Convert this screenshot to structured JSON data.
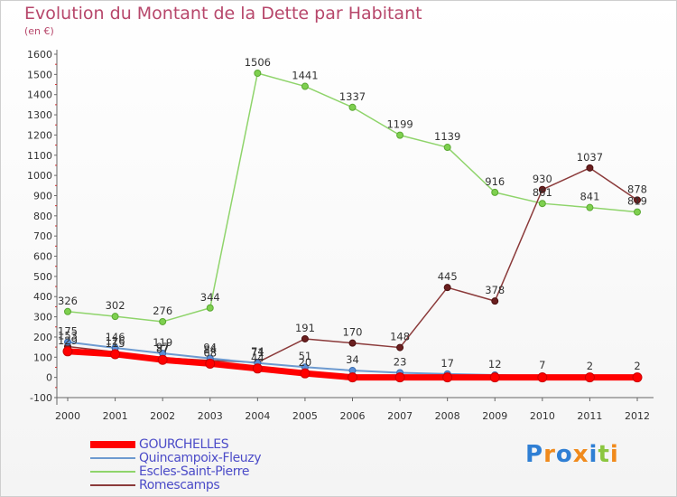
{
  "title": "Evolution du Montant de la Dette par Habitant",
  "subtitle": "(en €)",
  "logo": {
    "text": "Proxiti",
    "letter_colors": [
      "#2f7fd4",
      "#f08a1c",
      "#2f7fd4",
      "#f08a1c",
      "#2f7fd4",
      "#8bc63f",
      "#f08a1c"
    ]
  },
  "chart_data": {
    "type": "line",
    "x": [
      "2000",
      "2001",
      "2002",
      "2003",
      "2004",
      "2005",
      "2006",
      "2007",
      "2008",
      "2009",
      "2010",
      "2011",
      "2012"
    ],
    "ylim": [
      -100,
      1600
    ],
    "yticks": [
      -100,
      0,
      100,
      200,
      300,
      400,
      500,
      600,
      700,
      800,
      900,
      1000,
      1100,
      1200,
      1300,
      1400,
      1500,
      1600
    ],
    "grid": false,
    "legend_position": "bottom-left",
    "series": [
      {
        "name": "GOURCHELLES",
        "color": "#ff0000",
        "values": [
          129,
          115,
          87,
          68,
          44,
          20,
          0,
          0,
          0,
          0,
          0,
          0,
          0
        ],
        "labels": [
          "129",
          "115",
          "87",
          "68",
          "44",
          "20",
          "",
          "",
          "",
          "",
          "",
          "",
          ""
        ]
      },
      {
        "name": "Quincampoix-Fleuzy",
        "color": "#6d9ad0",
        "values": [
          175,
          146,
          119,
          94,
          71,
          51,
          34,
          23,
          17,
          12,
          7,
          2,
          2
        ],
        "labels": [
          "175",
          "146",
          "119",
          "94",
          "71",
          "51",
          "34",
          "23",
          "17",
          "12",
          "7",
          "2",
          "2"
        ]
      },
      {
        "name": "Escles-Saint-Pierre",
        "color": "#8fd46b",
        "values": [
          326,
          302,
          276,
          344,
          1506,
          1441,
          1337,
          1199,
          1139,
          916,
          861,
          841,
          819
        ],
        "labels": [
          "326",
          "302",
          "276",
          "344",
          "1506",
          "1441",
          "1337",
          "1199",
          "1139",
          "916",
          "861",
          "841",
          "819"
        ]
      },
      {
        "name": "Romescamps",
        "color": "#8b3a3a",
        "values": [
          153,
          126,
          97,
          84,
          74,
          191,
          170,
          148,
          445,
          378,
          930,
          1037,
          878
        ],
        "labels": [
          "153",
          "126",
          "97",
          "84",
          "74",
          "191",
          "170",
          "148",
          "445",
          "378",
          "930",
          "1037",
          "878"
        ]
      }
    ]
  }
}
